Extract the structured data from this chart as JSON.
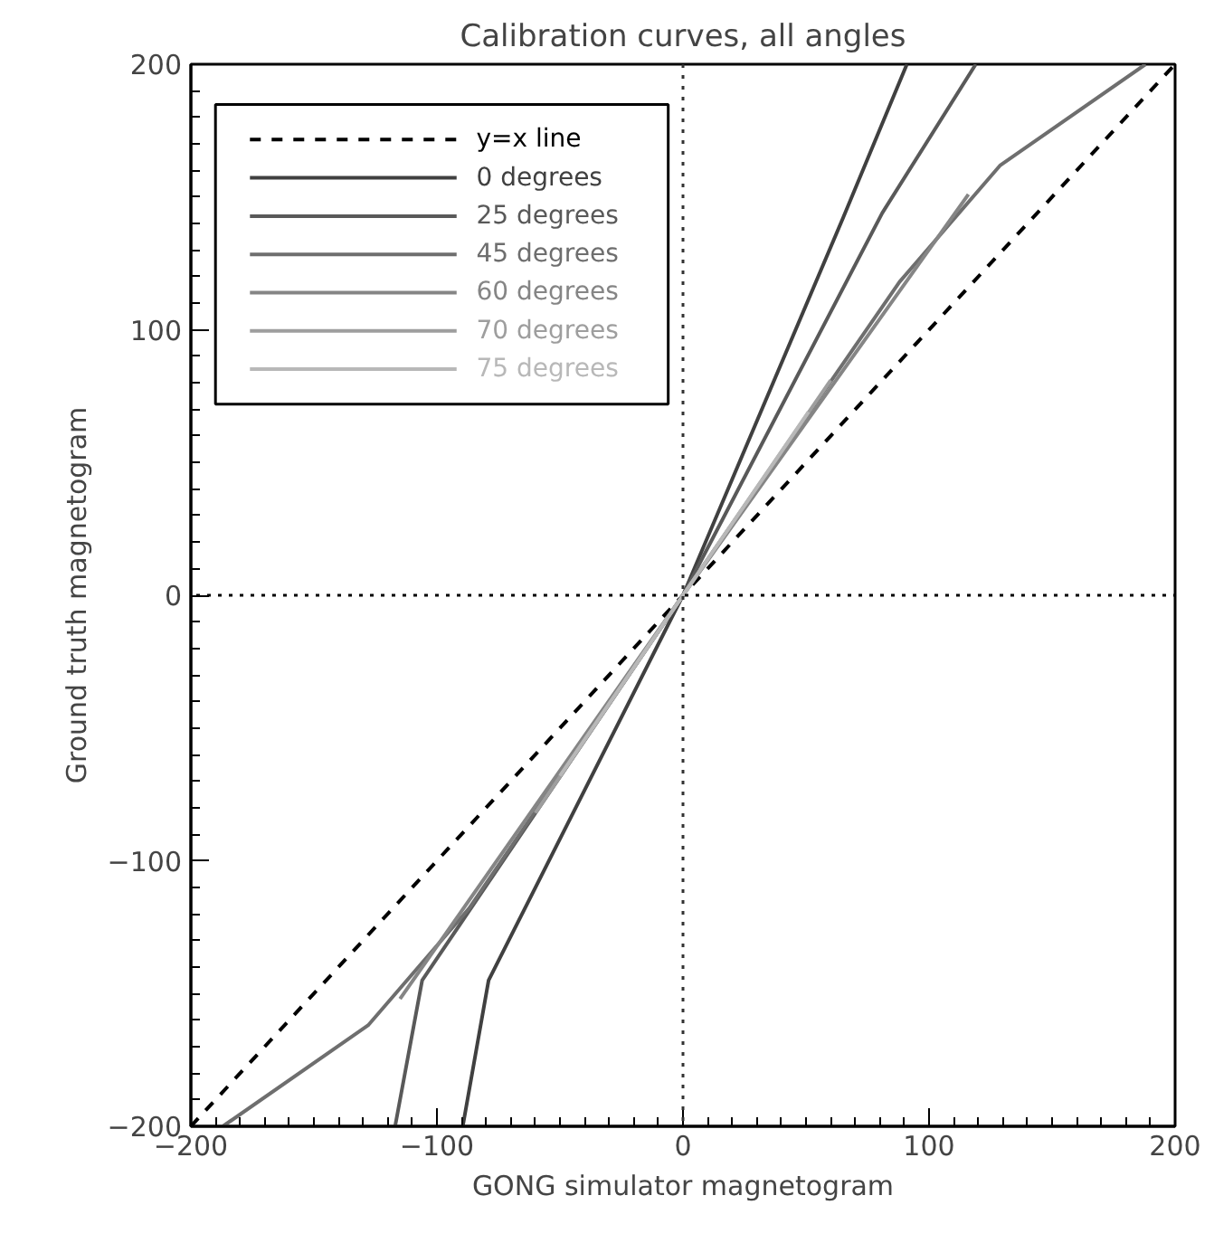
{
  "chart_data": {
    "type": "line",
    "title": "Calibration curves, all angles",
    "xlabel": "GONG simulator magnetogram",
    "ylabel": "Ground truth magnetogram",
    "xlim": [
      -200,
      200
    ],
    "ylim": [
      -200,
      200
    ],
    "xticks": [
      -200,
      -100,
      0,
      100,
      200
    ],
    "yticks": [
      -200,
      -100,
      0,
      100,
      200
    ],
    "grid": false,
    "legend": "top left",
    "ref_lines": [
      {
        "axis": "x",
        "value": 0,
        "line_style": "dotted",
        "color": "#333333"
      },
      {
        "axis": "y",
        "value": 0,
        "line_style": "dotted",
        "color": "#000000"
      }
    ],
    "series": [
      {
        "name": "y=x line",
        "color": "#000000",
        "line_style": "dashed",
        "x": [
          -200,
          200
        ],
        "values": [
          -200,
          200
        ]
      },
      {
        "name": "0 degrees",
        "color": "#404040",
        "x": [
          -89.5,
          -79,
          0,
          65,
          91
        ],
        "values": [
          -200,
          -145,
          0,
          142,
          200
        ]
      },
      {
        "name": "25 degrees",
        "color": "#595959",
        "x": [
          -117,
          -106,
          0,
          81,
          119
        ],
        "values": [
          -200,
          -145,
          0,
          144,
          200
        ]
      },
      {
        "name": "45 degrees",
        "color": "#6e6e6e",
        "x": [
          -187,
          -128,
          -87,
          0,
          88,
          129,
          188
        ],
        "values": [
          -200,
          -162,
          -118,
          0,
          118,
          162,
          200
        ]
      },
      {
        "name": "60 degrees",
        "color": "#858585",
        "x": [
          -115,
          0,
          116
        ],
        "values": [
          -152,
          0,
          151
        ]
      },
      {
        "name": "70 degrees",
        "color": "#9e9e9e",
        "x": [
          -60,
          0,
          60
        ],
        "values": [
          -82,
          0,
          81
        ]
      },
      {
        "name": "75 degrees",
        "color": "#b8b8b8",
        "x": [
          -50,
          0,
          51
        ],
        "values": [
          -68,
          0,
          69
        ]
      }
    ]
  }
}
